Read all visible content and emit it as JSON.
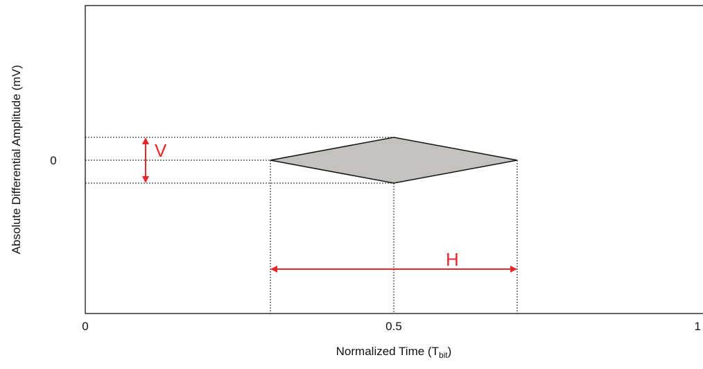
{
  "diagram": {
    "y_axis": {
      "label": "Absolute Differential Amplitude (mV)",
      "tick_label": "0"
    },
    "x_axis": {
      "label_main": "Normalized Time (T",
      "label_sub": "bit",
      "label_close": ")",
      "tick_labels": [
        "0",
        "0.5",
        "1"
      ]
    },
    "eye_opening": {
      "fill_color": "#c4c2be",
      "outline_color": "#111111"
    },
    "vertical_marker": {
      "label": "V",
      "color": "#e8262a"
    },
    "horizontal_marker": {
      "label": "H",
      "color": "#e8262a"
    }
  }
}
